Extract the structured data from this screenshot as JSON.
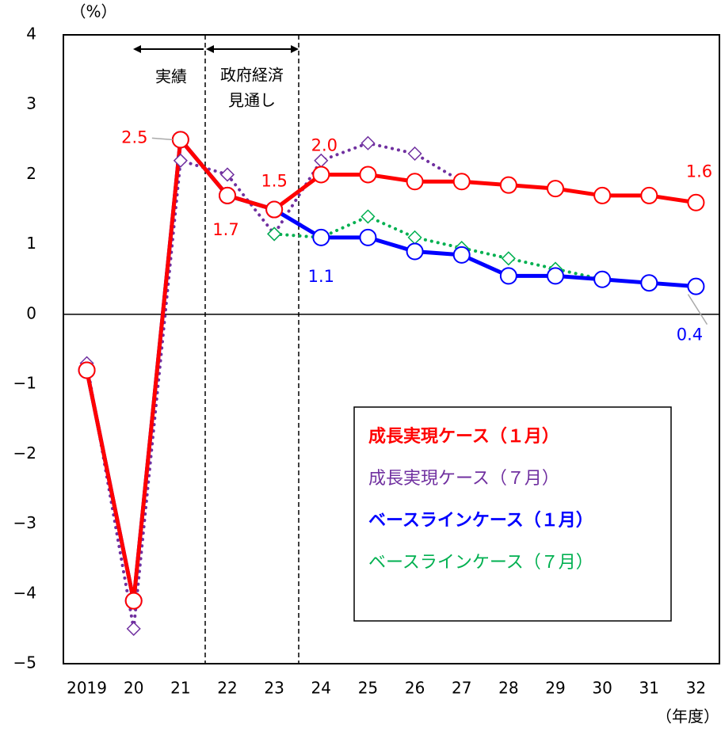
{
  "chart_data": {
    "type": "line",
    "y_label": "（%）",
    "x_label": "（年度）",
    "annotations": [
      "実績",
      "政府経済",
      "見通し"
    ],
    "categories": [
      "2019",
      "20",
      "21",
      "22",
      "23",
      "24",
      "25",
      "26",
      "27",
      "28",
      "29",
      "30",
      "31",
      "32"
    ],
    "ylim": [
      -5,
      4
    ],
    "yticks": [
      {
        "value": -5,
        "label": "−5"
      },
      {
        "value": -4,
        "label": "−4"
      },
      {
        "value": -3,
        "label": "−3"
      },
      {
        "value": -2,
        "label": "−2"
      },
      {
        "value": -1,
        "label": "−1"
      },
      0,
      1,
      2,
      3,
      4
    ],
    "series": [
      {
        "name": "成長実現ケース（１月）",
        "color": "#ff0000",
        "style": "solid",
        "marker": "circle",
        "bold": true,
        "values": [
          -0.8,
          -4.1,
          2.5,
          1.7,
          1.5,
          2.0,
          2.0,
          1.9,
          1.9,
          1.85,
          1.8,
          1.7,
          1.7,
          1.6
        ],
        "value_labels": [
          null,
          null,
          "2.5",
          "1.7",
          "1.5",
          "2.0",
          null,
          null,
          null,
          null,
          null,
          null,
          null,
          "1.6"
        ]
      },
      {
        "name": "成長実現ケース（７月）",
        "color": "#7030a0",
        "style": "dotted",
        "marker": "diamond",
        "bold": false,
        "values": [
          -0.7,
          -4.5,
          2.2,
          2.0,
          1.15,
          2.2,
          2.45,
          2.3,
          1.9,
          null,
          null,
          null,
          null,
          null
        ]
      },
      {
        "name": "ベースラインケース（１月）",
        "color": "#0000ff",
        "style": "solid",
        "marker": "circle",
        "bold": true,
        "values": [
          -0.8,
          -4.1,
          2.5,
          1.7,
          1.5,
          1.1,
          1.1,
          0.9,
          0.85,
          0.55,
          0.55,
          0.5,
          0.45,
          0.4
        ],
        "value_labels": [
          null,
          null,
          null,
          null,
          null,
          "1.1",
          null,
          null,
          null,
          null,
          null,
          null,
          null,
          "0.4"
        ]
      },
      {
        "name": "ベースラインケース（７月）",
        "color": "#00b050",
        "style": "dotted",
        "marker": "diamond",
        "bold": false,
        "values": [
          null,
          null,
          null,
          null,
          1.15,
          1.1,
          1.4,
          1.1,
          0.95,
          0.8,
          0.65,
          0.5,
          null,
          null
        ]
      }
    ]
  }
}
